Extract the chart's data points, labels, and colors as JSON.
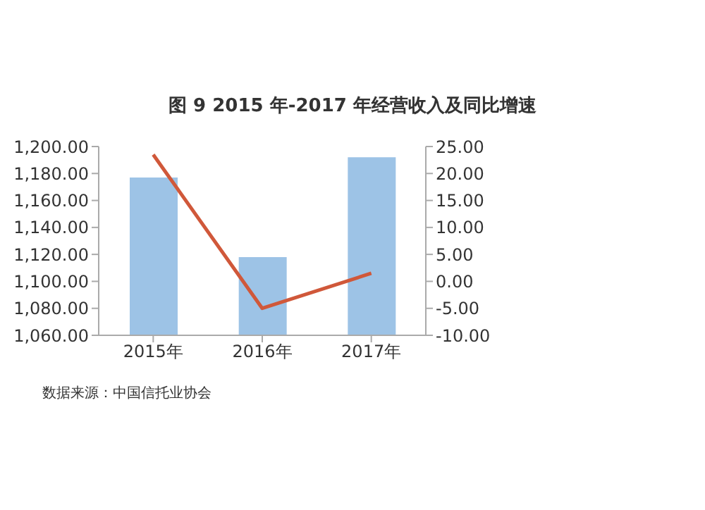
{
  "chart_data": {
    "type": "bar",
    "title": "图 9  2015 年-2017 年经营收入及同比增速",
    "categories": [
      "2015年",
      "2016年",
      "2017年"
    ],
    "series": [
      {
        "color": "#9dc3e6",
        "values": [
          1177,
          1118,
          1192
        ]
      },
      {
        "type": "line",
        "axis": "y2",
        "color": "#d0583a",
        "values": [
          23.5,
          -5,
          1.5
        ]
      }
    ],
    "ylim": [
      1060,
      1200
    ],
    "yticks": [
      {
        "value": 1060,
        "label": "1,060.00"
      },
      {
        "value": 1080,
        "label": "1,080.00"
      },
      {
        "value": 1100,
        "label": "1,100.00"
      },
      {
        "value": 1120,
        "label": "1,120.00"
      },
      {
        "value": 1140,
        "label": "1,140.00"
      },
      {
        "value": 1160,
        "label": "1,160.00"
      },
      {
        "value": 1180,
        "label": "1,180.00"
      },
      {
        "value": 1200,
        "label": "1,200.00"
      }
    ],
    "y2lim": [
      -10,
      25
    ],
    "y2ticks": [
      {
        "value": -10,
        "label": "-10.00"
      },
      {
        "value": -5,
        "label": "-5.00"
      },
      {
        "value": 0,
        "label": "0.00"
      },
      {
        "value": 5,
        "label": "5.00"
      },
      {
        "value": 10,
        "label": "10.00"
      },
      {
        "value": 15,
        "label": "15.00"
      },
      {
        "value": 20,
        "label": "20.00"
      },
      {
        "value": 25,
        "label": "25.00"
      }
    ],
    "grid": false,
    "legend": false,
    "marker": "none",
    "annotations": [
      "数据来源：中国信托业协会"
    ]
  }
}
